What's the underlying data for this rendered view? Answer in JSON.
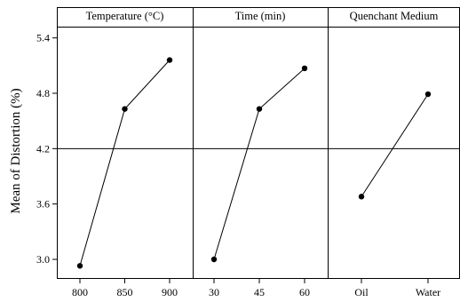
{
  "chart_data": {
    "type": "line",
    "ylabel": "Mean of Distortion (%)",
    "ylim": [
      2.8,
      5.55
    ],
    "yticks": [
      3.0,
      3.6,
      4.2,
      4.8,
      5.4
    ],
    "ytick_labels": [
      "3.0",
      "3.6",
      "4.2",
      "4.8",
      "5.4"
    ],
    "reference_line": 4.2,
    "colors": {
      "line": "#000000",
      "marker": "#000000",
      "frame": "#000000"
    },
    "panels": [
      {
        "title": "Temperature (°C)",
        "categories": [
          "800",
          "850",
          "900"
        ],
        "values": [
          2.93,
          4.63,
          5.16
        ]
      },
      {
        "title": "Time (min)",
        "categories": [
          "30",
          "45",
          "60"
        ],
        "values": [
          3.0,
          4.63,
          5.07
        ]
      },
      {
        "title": "Quenchant Medium",
        "categories": [
          "Oil",
          "Water"
        ],
        "values": [
          3.68,
          4.79
        ]
      }
    ]
  }
}
